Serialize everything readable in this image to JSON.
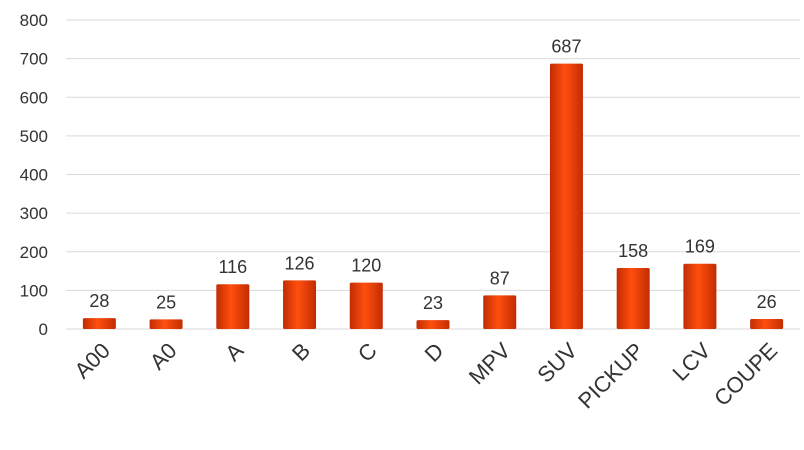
{
  "chart_data": {
    "type": "bar",
    "title": "",
    "xlabel": "",
    "ylabel": "",
    "categories": [
      "A00",
      "A0",
      "A",
      "B",
      "C",
      "D",
      "MPV",
      "SUV",
      "PICKUP",
      "LCV",
      "COUPE"
    ],
    "values": [
      28,
      25,
      116,
      126,
      120,
      23,
      87,
      687,
      158,
      169,
      26
    ],
    "ylim": [
      0,
      800
    ],
    "yticks": [
      0,
      100,
      200,
      300,
      400,
      500,
      600,
      700,
      800
    ],
    "grid": true,
    "legend": "none",
    "data_labels": true,
    "colors": {
      "bar_dark": "#c22c02",
      "bar_mid": "#ff4f0f",
      "bar_light": "#ff7a3d",
      "gridline": "#d9d9d9",
      "text": "#333333"
    }
  }
}
